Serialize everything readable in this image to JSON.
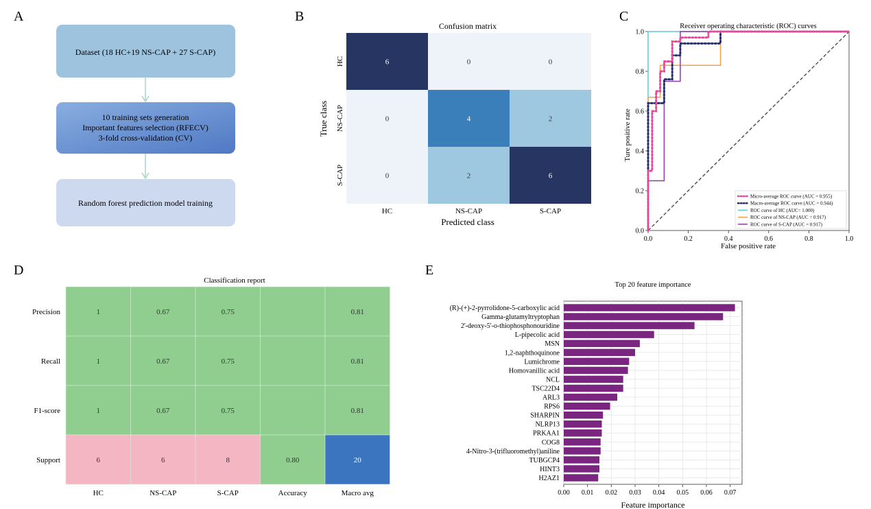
{
  "panels": [
    "A",
    "B",
    "C",
    "D",
    "E"
  ],
  "colors": {
    "flow_box1": "#9dc3de",
    "flow_box2_top": "#8aaee0",
    "flow_box2_bottom": "#4f79c4",
    "flow_box3": "#cdd9ee",
    "flow_arrow": "#a8d5c4",
    "cm_dark": "#263561",
    "cm_mid": "#3a7fba",
    "cm_light": "#9ec8df",
    "cm_empty": "#eef3fa",
    "report_green": "#8fce8f",
    "report_pink": "#f4b6c2",
    "report_blue": "#3b75bf",
    "bar_purple": "#7a2680"
  },
  "flowchart": {
    "boxes": [
      {
        "label": "Dataset (18 HC+19 NS-CAP + 27 S-CAP)"
      },
      {
        "lines": [
          "10 training sets generation",
          "Important features selection (RFECV)",
          "3-fold cross-validation (CV)"
        ]
      },
      {
        "label": "Random forest prediction model training"
      }
    ]
  },
  "chart_data": [
    {
      "type": "heatmap",
      "title": "Confusion matrix",
      "xlabel": "Predicted class",
      "ylabel": "True class",
      "x_categories": [
        "HC",
        "NS-CAP",
        "S-CAP"
      ],
      "y_categories": [
        "HC",
        "NS-CAP",
        "S-CAP"
      ],
      "values": [
        [
          6,
          0,
          0
        ],
        [
          0,
          4,
          2
        ],
        [
          0,
          2,
          6
        ]
      ]
    },
    {
      "type": "line",
      "title": "Receiver operating characteristic (ROC) curves",
      "xlabel": "False positive rate",
      "ylabel": "Ture positive rate",
      "xlim": [
        0,
        1
      ],
      "ylim": [
        0,
        1
      ],
      "xticks": [
        "0.0",
        "0.2",
        "0.4",
        "0.6",
        "0.8",
        "1.0"
      ],
      "yticks": [
        "0.0",
        "0.2",
        "0.4",
        "0.6",
        "0.8",
        "1.0"
      ],
      "legend_position": "lower-right",
      "series": [
        {
          "name": "Micro-average ROC curve (AUC = 0.955)",
          "color": "#e8479b",
          "style": "dotted",
          "x": [
            0,
            0,
            0.02,
            0.02,
            0.04,
            0.04,
            0.06,
            0.06,
            0.08,
            0.08,
            0.12,
            0.12,
            0.16,
            0.16,
            0.3,
            0.3,
            1
          ],
          "y": [
            0,
            0.3,
            0.3,
            0.6,
            0.6,
            0.7,
            0.7,
            0.8,
            0.8,
            0.85,
            0.85,
            0.95,
            0.95,
            0.97,
            0.97,
            1,
            1
          ]
        },
        {
          "name": "Macro-average ROC curve (AUC = 0.944)",
          "color": "#27306a",
          "style": "dotted",
          "x": [
            0,
            0,
            0.08,
            0.08,
            0.12,
            0.12,
            0.16,
            0.16,
            0.36,
            0.36,
            1
          ],
          "y": [
            0,
            0.64,
            0.64,
            0.76,
            0.76,
            0.88,
            0.88,
            0.94,
            0.94,
            1,
            1
          ]
        },
        {
          "name": "ROC curve of HC (AUC= 1.000)",
          "color": "#5cc9d6",
          "style": "solid",
          "x": [
            0,
            0,
            1
          ],
          "y": [
            0,
            1,
            1
          ]
        },
        {
          "name": "ROC curve of NS-CAP (AUC = 0.917)",
          "color": "#f5a04a",
          "style": "solid",
          "x": [
            0,
            0,
            0.06,
            0.06,
            0.16,
            0.16,
            0.36,
            0.36,
            1
          ],
          "y": [
            0,
            0.67,
            0.67,
            0.83,
            0.83,
            0.83,
            0.83,
            1,
            1
          ]
        },
        {
          "name": "ROC curve of S-CAP (AUC = 0.917)",
          "color": "#8a3aa8",
          "style": "solid",
          "x": [
            0,
            0,
            0.08,
            0.08,
            0.16,
            0.16,
            1
          ],
          "y": [
            0,
            0.25,
            0.25,
            0.75,
            0.75,
            1,
            1
          ]
        },
        {
          "name": "",
          "color": "#555555",
          "style": "dashed",
          "x": [
            0,
            1
          ],
          "y": [
            0,
            1
          ]
        }
      ]
    },
    {
      "type": "table",
      "title": "Classification report",
      "columns": [
        "HC",
        "NS-CAP",
        "S-CAP",
        "Accuracy",
        "Macro avg"
      ],
      "rows": [
        {
          "label": "Precision",
          "cells": [
            "1",
            "0.67",
            "0.75",
            "",
            "0.81"
          ]
        },
        {
          "label": "Recall",
          "cells": [
            "1",
            "0.67",
            "0.75",
            "",
            "0.81"
          ]
        },
        {
          "label": "F1-score",
          "cells": [
            "1",
            "0.67",
            "0.75",
            "",
            "0.81"
          ]
        },
        {
          "label": "Support",
          "cells": [
            "6",
            "6",
            "8",
            "0.80",
            "20"
          ]
        }
      ]
    },
    {
      "type": "bar",
      "orientation": "horizontal",
      "title": "Top 20 feature importance",
      "xlabel": "Feature importance",
      "xlim": [
        0,
        0.075
      ],
      "xticks": [
        "0.00",
        "0.01",
        "0.02",
        "0.03",
        "0.04",
        "0.05",
        "0.06",
        "0.07"
      ],
      "categories": [
        "(R)-(+)-2-pyrrolidone-5-carboxylic acid",
        "Gamma-glutamyltryptophan",
        "2'-deoxy-5'-o-thiophosphonouridine",
        "L-pipecolic acid",
        "MSN",
        "1,2-naphthoquinone",
        "Lumichrome",
        "Homovanillic acid",
        "NCL",
        "TSC22D4",
        "ARL3",
        "RPS6",
        "SHARPIN",
        "NLRP13",
        "PRKAA1",
        "COG8",
        "4-Nitro-3-(trifluoromethyl)aniline",
        "TUBGCP4",
        "HINT3",
        "H2AZ1"
      ],
      "values": [
        0.072,
        0.067,
        0.055,
        0.038,
        0.032,
        0.03,
        0.0275,
        0.027,
        0.025,
        0.025,
        0.0225,
        0.0195,
        0.0165,
        0.016,
        0.016,
        0.0155,
        0.0155,
        0.015,
        0.015,
        0.0145
      ]
    }
  ]
}
